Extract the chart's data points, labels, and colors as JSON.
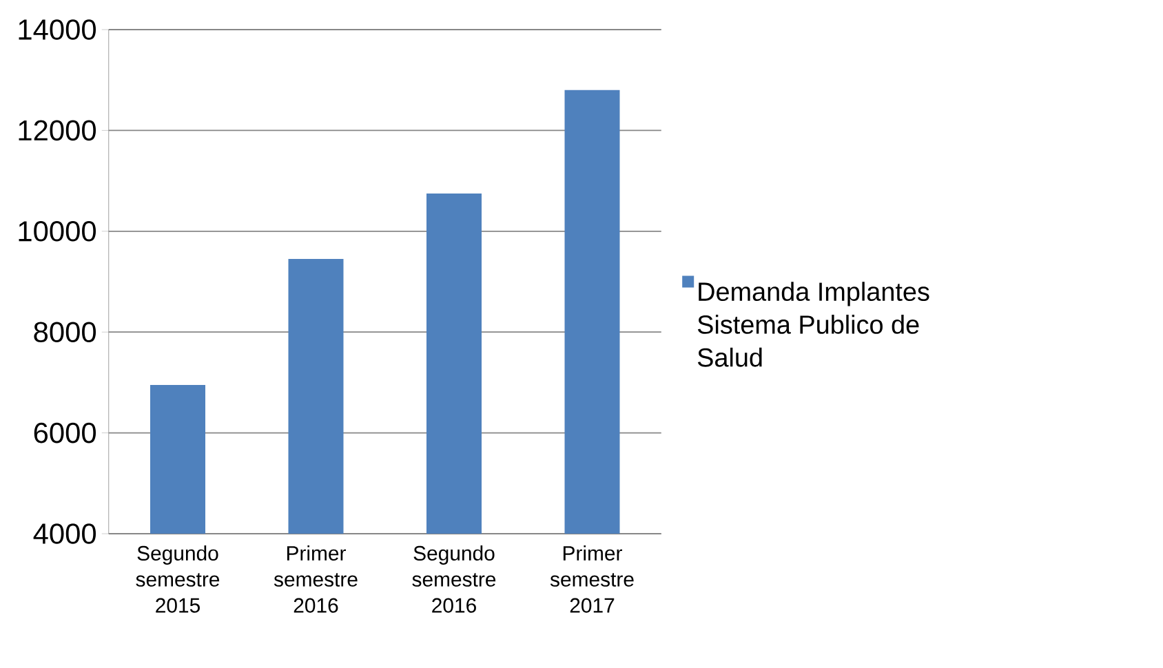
{
  "chart_data": {
    "type": "bar",
    "categories": [
      "Segundo semestre 2015",
      "Primer semestre 2016",
      "Segundo semestre 2016",
      "Primer semestre 2017"
    ],
    "series": [
      {
        "name": "Demanda Implantes Sistema Publico de Salud",
        "color": "#4f81bd",
        "values": [
          6950,
          9450,
          10750,
          12800
        ]
      }
    ],
    "ylim": [
      4000,
      14000
    ],
    "yticks": [
      4000,
      6000,
      8000,
      10000,
      12000,
      14000
    ],
    "grid": "y",
    "legend": "right"
  }
}
